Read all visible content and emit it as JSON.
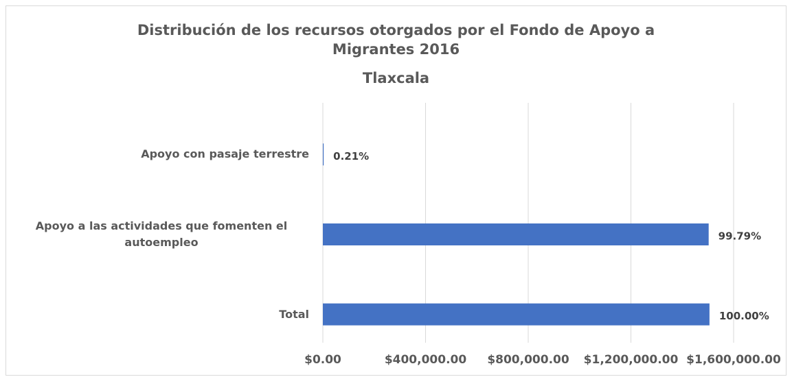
{
  "chart_data": {
    "type": "barh",
    "title": "Distribución de los recursos otorgados por el Fondo de Apoyo a Migrantes 2016",
    "subtitle": "Tlaxcala",
    "categories": [
      "Apoyo con pasaje terrestre",
      "Apoyo a las actividades que fomenten el autoempleo",
      "Total"
    ],
    "values": [
      3163,
      1502837,
      1506000
    ],
    "value_labels": [
      "0.21%",
      "99.79%",
      "100.00%"
    ],
    "color": "#4472c4",
    "xlim": [
      0,
      1600000
    ],
    "xticks": [
      {
        "value": 0,
        "label": "$0.00"
      },
      {
        "value": 400000,
        "label": "$400,000.00"
      },
      {
        "value": 800000,
        "label": "$800,000.00"
      },
      {
        "value": 1200000,
        "label": "$1,200,000.00"
      },
      {
        "value": 1600000,
        "label": "$1,600,000.00"
      }
    ],
    "grid": true
  }
}
